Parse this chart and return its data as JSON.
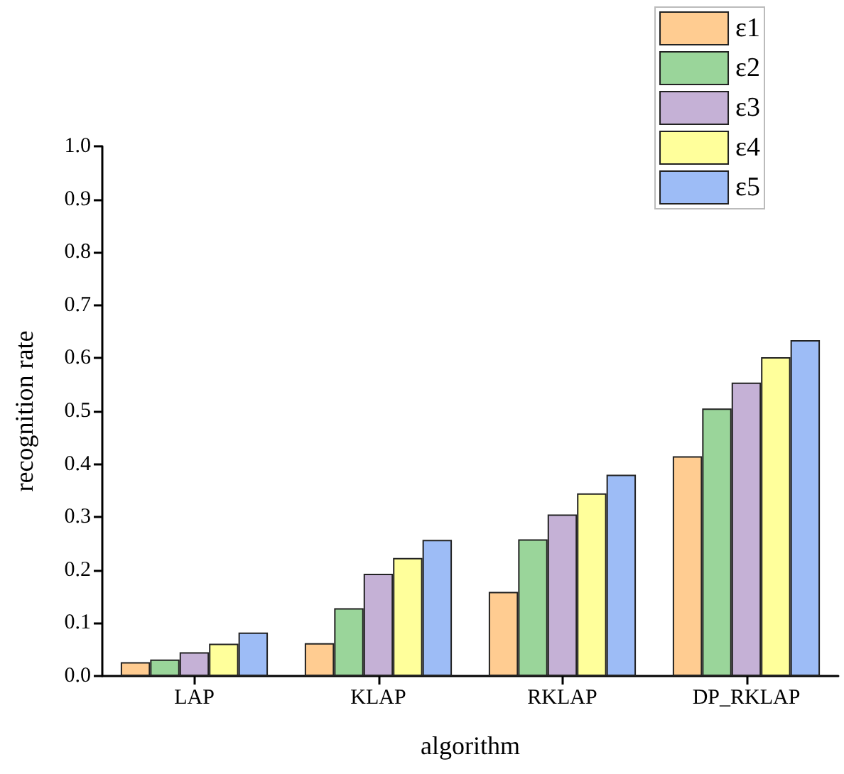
{
  "chart_data": {
    "type": "bar",
    "xlabel": "algorithm",
    "ylabel": "recognition rate",
    "categories": [
      "LAP",
      "KLAP",
      "RKLAP",
      "DP_RKLAP"
    ],
    "series": [
      {
        "name": "ε1",
        "color": "#ffcc91",
        "values": [
          0.026,
          0.062,
          0.159,
          0.415
        ]
      },
      {
        "name": "ε2",
        "color": "#9ad59a",
        "values": [
          0.031,
          0.128,
          0.258,
          0.505
        ]
      },
      {
        "name": "ε3",
        "color": "#c5b1d6",
        "values": [
          0.045,
          0.193,
          0.305,
          0.554
        ]
      },
      {
        "name": "ε4",
        "color": "#ffff9b",
        "values": [
          0.061,
          0.223,
          0.345,
          0.602
        ]
      },
      {
        "name": "ε5",
        "color": "#9dbcf6",
        "values": [
          0.082,
          0.257,
          0.38,
          0.634
        ]
      }
    ],
    "ylim": [
      0,
      1
    ],
    "yticks": [
      {
        "value": 0,
        "label": "0.0"
      },
      0.1,
      0.2,
      0.3,
      0.4,
      0.5,
      0.6,
      0.7,
      0.8,
      0.9,
      {
        "value": 1,
        "label": "1.0"
      }
    ],
    "grid": false,
    "legend": "top right"
  }
}
